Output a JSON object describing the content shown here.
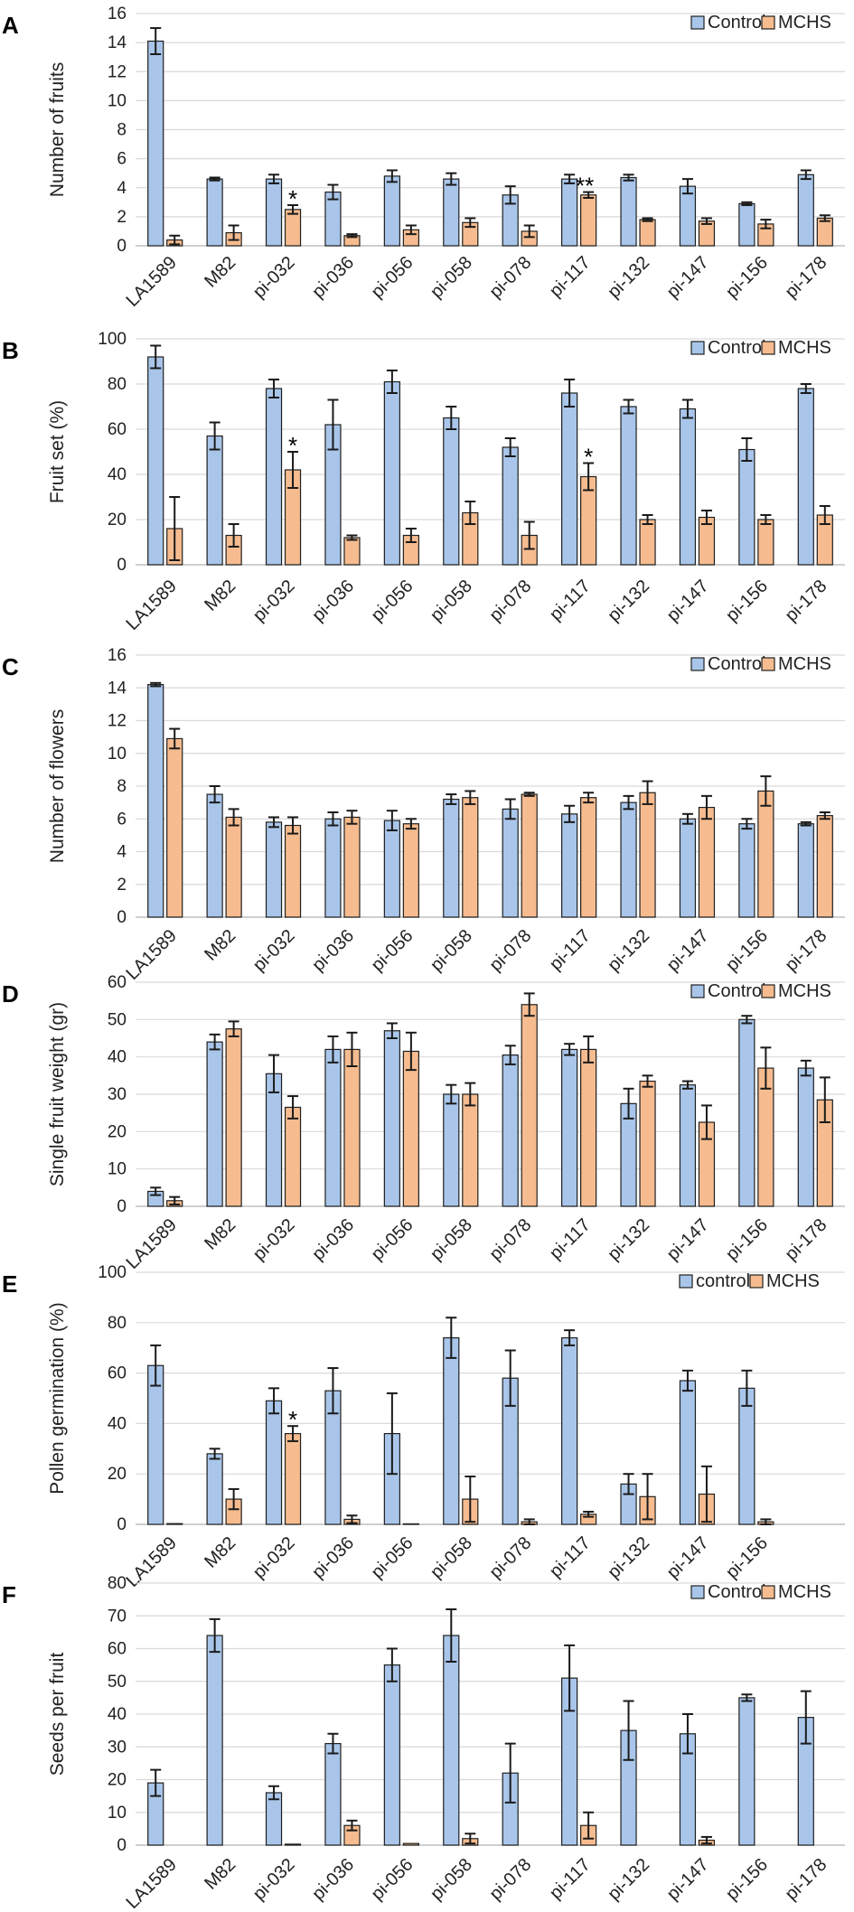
{
  "colors": {
    "control": "#a9c6ea",
    "treatment": "#f6bc8f",
    "grid": "#d9d9d9"
  },
  "chart_data": [
    {
      "type": "bar",
      "panel": "A",
      "ylabel": "Number of fruits",
      "ylim": [
        0,
        16
      ],
      "yticks": [
        0,
        2,
        4,
        6,
        8,
        10,
        12,
        14,
        16
      ],
      "legend": [
        "Control",
        "MCHS"
      ],
      "categories": [
        "LA1589",
        "M82",
        "pi-032",
        "pi-036",
        "pi-056",
        "pi-058",
        "pi-078",
        "pi-117",
        "pi-132",
        "pi-147",
        "pi-156",
        "pi-178"
      ],
      "series": [
        {
          "name": "Control",
          "values": [
            14.1,
            4.6,
            4.6,
            3.7,
            4.8,
            4.6,
            3.5,
            4.6,
            4.7,
            4.1,
            2.9,
            4.9
          ],
          "errors": [
            0.9,
            0.1,
            0.3,
            0.5,
            0.4,
            0.4,
            0.6,
            0.3,
            0.2,
            0.5,
            0.1,
            0.3
          ]
        },
        {
          "name": "MCHS",
          "values": [
            0.4,
            0.9,
            2.5,
            0.7,
            1.1,
            1.6,
            1.0,
            3.5,
            1.8,
            1.7,
            1.5,
            1.9
          ],
          "errors": [
            0.3,
            0.5,
            0.3,
            0.1,
            0.3,
            0.3,
            0.4,
            0.2,
            0.1,
            0.2,
            0.3,
            0.2
          ]
        }
      ],
      "annotations": [
        {
          "category": "pi-032",
          "series": "MCHS",
          "text": "*"
        },
        {
          "category": "pi-117",
          "series": "MCHS",
          "text": "**"
        }
      ]
    },
    {
      "type": "bar",
      "panel": "B",
      "ylabel": "Fruit set (%)",
      "ylim": [
        0,
        100
      ],
      "yticks": [
        0,
        20,
        40,
        60,
        80,
        100
      ],
      "legend": [
        "Control",
        "MCHS"
      ],
      "categories": [
        "LA1589",
        "M82",
        "pi-032",
        "pi-036",
        "pi-056",
        "pi-058",
        "pi-078",
        "pi-117",
        "pi-132",
        "pi-147",
        "pi-156",
        "pi-178"
      ],
      "series": [
        {
          "name": "Control",
          "values": [
            92,
            57,
            78,
            62,
            81,
            65,
            52,
            76,
            70,
            69,
            51,
            78
          ],
          "errors": [
            5,
            6,
            4,
            11,
            5,
            5,
            4,
            6,
            3,
            4,
            5,
            2
          ]
        },
        {
          "name": "MCHS",
          "values": [
            16,
            13,
            42,
            12,
            13,
            23,
            13,
            39,
            20,
            21,
            20,
            22
          ],
          "errors": [
            14,
            5,
            8,
            1,
            3,
            5,
            6,
            6,
            2,
            3,
            2,
            4
          ]
        }
      ],
      "annotations": [
        {
          "category": "pi-032",
          "series": "MCHS",
          "text": "*"
        },
        {
          "category": "pi-117",
          "series": "MCHS",
          "text": "*"
        }
      ]
    },
    {
      "type": "bar",
      "panel": "C",
      "ylabel": "Number of flowers",
      "ylim": [
        0,
        16
      ],
      "yticks": [
        0,
        2,
        4,
        6,
        8,
        10,
        12,
        14,
        16
      ],
      "legend": [
        "Control",
        "MCHS"
      ],
      "categories": [
        "LA1589",
        "M82",
        "pi-032",
        "pi-036",
        "pi-056",
        "pi-058",
        "pi-078",
        "pi-117",
        "pi-132",
        "pi-147",
        "pi-156",
        "pi-178"
      ],
      "series": [
        {
          "name": "Control",
          "values": [
            14.2,
            7.5,
            5.8,
            6.0,
            5.9,
            7.2,
            6.6,
            6.3,
            7.0,
            6.0,
            5.7,
            5.7
          ],
          "errors": [
            0.1,
            0.5,
            0.3,
            0.4,
            0.6,
            0.3,
            0.6,
            0.5,
            0.4,
            0.3,
            0.3,
            0.1
          ]
        },
        {
          "name": "MCHS",
          "values": [
            10.9,
            6.1,
            5.6,
            6.1,
            5.7,
            7.3,
            7.5,
            7.3,
            7.6,
            6.7,
            7.7,
            6.2
          ],
          "errors": [
            0.6,
            0.5,
            0.5,
            0.4,
            0.3,
            0.4,
            0.1,
            0.3,
            0.7,
            0.7,
            0.9,
            0.2
          ]
        }
      ],
      "annotations": []
    },
    {
      "type": "bar",
      "panel": "D",
      "ylabel": "Single fruit weight (gr)",
      "ylim": [
        0,
        60
      ],
      "yticks": [
        0,
        10,
        20,
        30,
        40,
        50,
        60
      ],
      "legend": [
        "Control",
        "MCHS"
      ],
      "categories": [
        "LA1589",
        "M82",
        "pi-032",
        "pi-036",
        "pi-056",
        "pi-058",
        "pi-078",
        "pi-117",
        "pi-132",
        "pi-147",
        "pi-156",
        "pi-178"
      ],
      "series": [
        {
          "name": "Control",
          "values": [
            4,
            44,
            35.5,
            42,
            47,
            30,
            40.5,
            42,
            27.5,
            32.5,
            50,
            37
          ],
          "errors": [
            1,
            2,
            5,
            3.5,
            2,
            2.5,
            2.5,
            1.5,
            4,
            1,
            1,
            2
          ]
        },
        {
          "name": "MCHS",
          "values": [
            1.5,
            47.5,
            26.5,
            42,
            41.5,
            30,
            54,
            42,
            33.5,
            22.5,
            37,
            28.5
          ],
          "errors": [
            1,
            2,
            3,
            4.5,
            5,
            3,
            3,
            3.5,
            1.5,
            4.5,
            5.5,
            6
          ]
        }
      ],
      "annotations": []
    },
    {
      "type": "bar",
      "panel": "E",
      "ylabel": "Pollen germination (%)",
      "ylim": [
        0,
        100
      ],
      "yticks": [
        0,
        20,
        40,
        60,
        80,
        100
      ],
      "legend": [
        "control",
        "MCHS"
      ],
      "categories": [
        "LA1589",
        "M82",
        "pi-032",
        "pi-036",
        "pi-056",
        "pi-058",
        "pi-078",
        "pi-117",
        "pi-132",
        "pi-147",
        "pi-156"
      ],
      "series": [
        {
          "name": "control",
          "values": [
            63,
            28,
            49,
            53,
            36,
            74,
            58,
            74,
            16,
            57,
            54
          ],
          "errors": [
            8,
            2,
            5,
            9,
            16,
            8,
            11,
            3,
            4,
            4,
            7
          ]
        },
        {
          "name": "MCHS",
          "values": [
            0.3,
            10,
            36,
            2,
            0.2,
            10,
            1,
            4,
            11,
            12,
            1
          ],
          "errors": [
            0,
            4,
            3,
            1.5,
            0,
            9,
            1,
            1,
            9,
            11,
            1
          ]
        }
      ],
      "annotations": [
        {
          "category": "pi-032",
          "series": "MCHS",
          "text": "*"
        }
      ]
    },
    {
      "type": "bar",
      "panel": "F",
      "ylabel": "Seeds per fruit",
      "ylim": [
        0,
        80
      ],
      "yticks": [
        0,
        10,
        20,
        30,
        40,
        50,
        60,
        70,
        80
      ],
      "legend": [
        "Control",
        "MCHS"
      ],
      "categories": [
        "LA1589",
        "M82",
        "pi-032",
        "pi-036",
        "pi-056",
        "pi-058",
        "pi-078",
        "pi-117",
        "pi-132",
        "pi-147",
        "pi-156",
        "pi-178"
      ],
      "series": [
        {
          "name": "Control",
          "values": [
            19,
            64,
            16,
            31,
            55,
            64,
            22,
            51,
            35,
            34,
            45,
            39
          ],
          "errors": [
            4,
            5,
            2,
            3,
            5,
            8,
            9,
            10,
            9,
            6,
            1,
            8
          ]
        },
        {
          "name": "MCHS",
          "values": [
            0,
            0,
            0.3,
            6,
            0.5,
            2,
            0,
            6,
            0,
            1.5,
            0,
            0
          ],
          "errors": [
            0,
            0,
            0,
            1.5,
            0,
            1.5,
            0,
            4,
            0,
            1,
            0,
            0
          ]
        }
      ],
      "annotations": []
    }
  ]
}
